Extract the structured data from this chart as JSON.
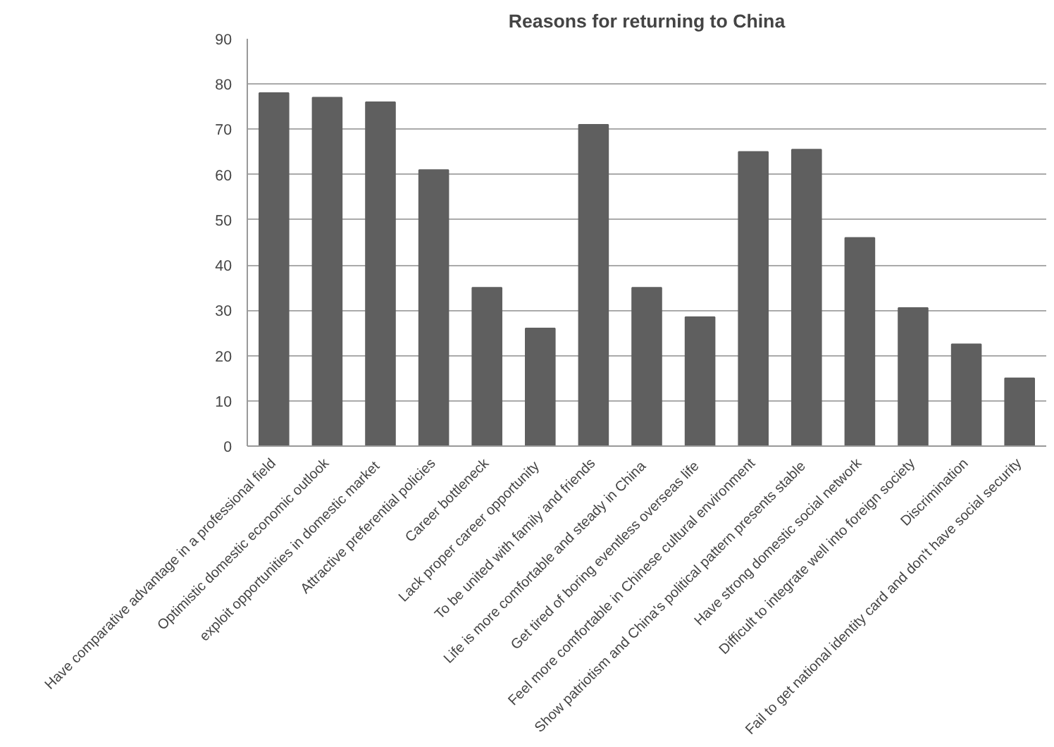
{
  "chart_data": {
    "type": "bar",
    "title": "Reasons for returning to China",
    "categories": [
      "Have comparative advantage in a professional field",
      "Optimistic domestic economic outlook",
      "exploit opportunities in domestic  market",
      "Attractive preferential policies",
      "Career bottleneck",
      "Lack  proper career opportunity",
      "To be united with family and friends",
      "Life is more comfortable and steady  in China",
      "Get tired of  boring eventless overseas life",
      "Feel more comfortable in Chinese cultural environment",
      "Show patriotism  and China's political pattern presents stable",
      "Have strong domestic social network",
      "Difficult to integrate well into foreign society",
      "Discrimination",
      "Fail to get national identity card and don't have social security"
    ],
    "values": [
      78,
      77,
      76,
      61,
      35,
      26,
      71,
      35,
      28.5,
      65,
      65.5,
      46,
      30.5,
      22.5,
      15
    ],
    "color": "#5f5f5f",
    "ylim": [
      0,
      90
    ],
    "yticks": [
      0,
      10,
      20,
      30,
      40,
      50,
      60,
      70,
      80,
      90
    ],
    "grid": "y"
  }
}
